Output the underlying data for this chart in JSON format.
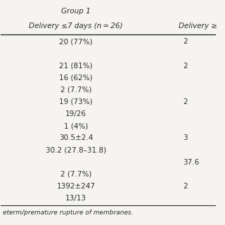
{
  "header_line1_left": "Group 1",
  "header_line2_left": "Delivery ≤7 days (n = 26)",
  "header_line2_right": "Delivery ≥",
  "rows": [
    [
      "20 (77%)",
      "2"
    ],
    [
      "",
      ""
    ],
    [
      "21 (81%)",
      "2"
    ],
    [
      "16 (62%)",
      ""
    ],
    [
      "2 (7.7%)",
      ""
    ],
    [
      "19 (73%)",
      "2"
    ],
    [
      "19/26",
      ""
    ],
    [
      "1 (4%)",
      ""
    ],
    [
      "30.5±2.4",
      "3"
    ],
    [
      "30.2 (27.8–31.8)",
      ""
    ],
    [
      "",
      "37.6"
    ],
    [
      "2 (7.7%)",
      ""
    ],
    [
      "1392±247",
      "2"
    ],
    [
      "13/13",
      ""
    ]
  ],
  "footnote": "eterm/premature rupture of membranes.",
  "bg_color": "#f5f4f0",
  "text_color": "#2e2e2e",
  "header_font_size": 7.5,
  "body_font_size": 7.5,
  "footnote_font_size": 6.5
}
